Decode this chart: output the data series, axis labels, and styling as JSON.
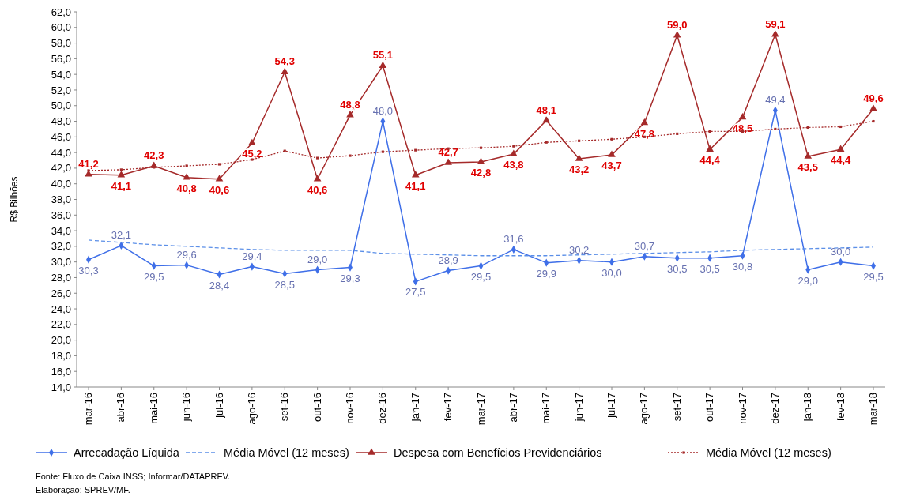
{
  "chart_data": {
    "type": "line",
    "ylabel": "R$ Bilhões",
    "categories": [
      "mar-16",
      "abr-16",
      "mai-16",
      "jun-16",
      "jul-16",
      "ago-16",
      "set-16",
      "out-16",
      "nov-16",
      "dez-16",
      "jan-17",
      "fev-17",
      "mar-17",
      "abr-17",
      "mai-17",
      "jun-17",
      "jul-17",
      "ago-17",
      "set-17",
      "out-17",
      "nov-17",
      "dez-17",
      "jan-18",
      "fev-18",
      "mar-18"
    ],
    "ylim": [
      14,
      62
    ],
    "yticks": [
      {
        "value": 14,
        "label": "14,0"
      },
      {
        "value": 16,
        "label": "16,0"
      },
      {
        "value": 18,
        "label": "18,0"
      },
      {
        "value": 20,
        "label": "20,0"
      },
      {
        "value": 22,
        "label": "22,0"
      },
      {
        "value": 24,
        "label": "24,0"
      },
      {
        "value": 26,
        "label": "26,0"
      },
      {
        "value": 28,
        "label": "28,0"
      },
      {
        "value": 30,
        "label": "30,0"
      },
      {
        "value": 32,
        "label": "32,0"
      },
      {
        "value": 34,
        "label": "34,0"
      },
      {
        "value": 36,
        "label": "36,0"
      },
      {
        "value": 38,
        "label": "38,0"
      },
      {
        "value": 40,
        "label": "40,0"
      },
      {
        "value": 42,
        "label": "42,0"
      },
      {
        "value": 44,
        "label": "44,0"
      },
      {
        "value": 46,
        "label": "46,0"
      },
      {
        "value": 48,
        "label": "48,0"
      },
      {
        "value": 50,
        "label": "50,0"
      },
      {
        "value": 52,
        "label": "52,0"
      },
      {
        "value": 54,
        "label": "54,0"
      },
      {
        "value": 56,
        "label": "56,0"
      },
      {
        "value": 58,
        "label": "58,0"
      },
      {
        "value": 60,
        "label": "60,0"
      },
      {
        "value": 62,
        "label": "62,0"
      }
    ],
    "grid": false,
    "legend": "bottom",
    "series": [
      {
        "name": "Arrecadação Líquida",
        "color": "#3f6fe8",
        "marker": "diamond",
        "line_style": "solid",
        "values": [
          30.3,
          32.1,
          29.5,
          29.6,
          28.4,
          29.4,
          28.5,
          29.0,
          29.3,
          48.0,
          27.5,
          28.9,
          29.5,
          31.6,
          29.9,
          30.2,
          30.0,
          30.7,
          30.5,
          30.5,
          30.8,
          49.4,
          29.0,
          30.0,
          29.5
        ],
        "value_labels": [
          "30,3",
          "32,1",
          "29,5",
          "29,6",
          "28,4",
          "29,4",
          "28,5",
          "29,0",
          "29,3",
          "48,0",
          "27,5",
          "28,9",
          "29,5",
          "31,6",
          "29,9",
          "30,2",
          "30,0",
          "30,7",
          "30,5",
          "30,5",
          "30,8",
          "49,4",
          "29,0",
          "30,0",
          "29,5"
        ]
      },
      {
        "name": "Média Móvel (12 meses)",
        "color": "#5b8fe8",
        "marker": "none",
        "line_style": "dashed",
        "values": [
          32.8,
          32.5,
          32.2,
          32.0,
          31.8,
          31.6,
          31.5,
          31.5,
          31.5,
          31.1,
          31.0,
          30.9,
          30.8,
          30.8,
          30.8,
          30.9,
          31.0,
          31.1,
          31.2,
          31.3,
          31.5,
          31.6,
          31.7,
          31.8,
          31.9
        ]
      },
      {
        "name": "Despesa com Benefícios Previdenciários",
        "color": "#a52a2a",
        "marker": "triangle",
        "line_style": "solid",
        "values": [
          41.2,
          41.1,
          42.3,
          40.8,
          40.6,
          45.2,
          54.3,
          40.6,
          48.8,
          55.1,
          41.1,
          42.7,
          42.8,
          43.8,
          48.1,
          43.2,
          43.7,
          47.8,
          59.0,
          44.4,
          48.5,
          59.1,
          43.5,
          44.4,
          49.6
        ],
        "value_labels": [
          "41,2",
          "41,1",
          "42,3",
          "40,8",
          "40,6",
          "45,2",
          "54,3",
          "40,6",
          "48,8",
          "55,1",
          "41,1",
          "42,7",
          "42,8",
          "43,8",
          "48,1",
          "43,2",
          "43,7",
          "47,8",
          "59,0",
          "44,4",
          "48,5",
          "59,1",
          "43,5",
          "44,4",
          "49,6"
        ]
      },
      {
        "name": "Média Móvel (12 meses)",
        "color": "#a52a2a",
        "marker": "square",
        "line_style": "dotted",
        "values": [
          41.7,
          41.8,
          42.1,
          42.3,
          42.5,
          43.1,
          44.2,
          43.3,
          43.6,
          44.1,
          44.3,
          44.5,
          44.6,
          44.8,
          45.3,
          45.5,
          45.7,
          46.0,
          46.4,
          46.7,
          46.7,
          47.0,
          47.2,
          47.3,
          48.0
        ]
      }
    ],
    "annotations": [
      "Fonte: Fluxo de Caixa INSS; Informar/DATAPREV.",
      "Elaboração: SPREV/MF."
    ]
  }
}
